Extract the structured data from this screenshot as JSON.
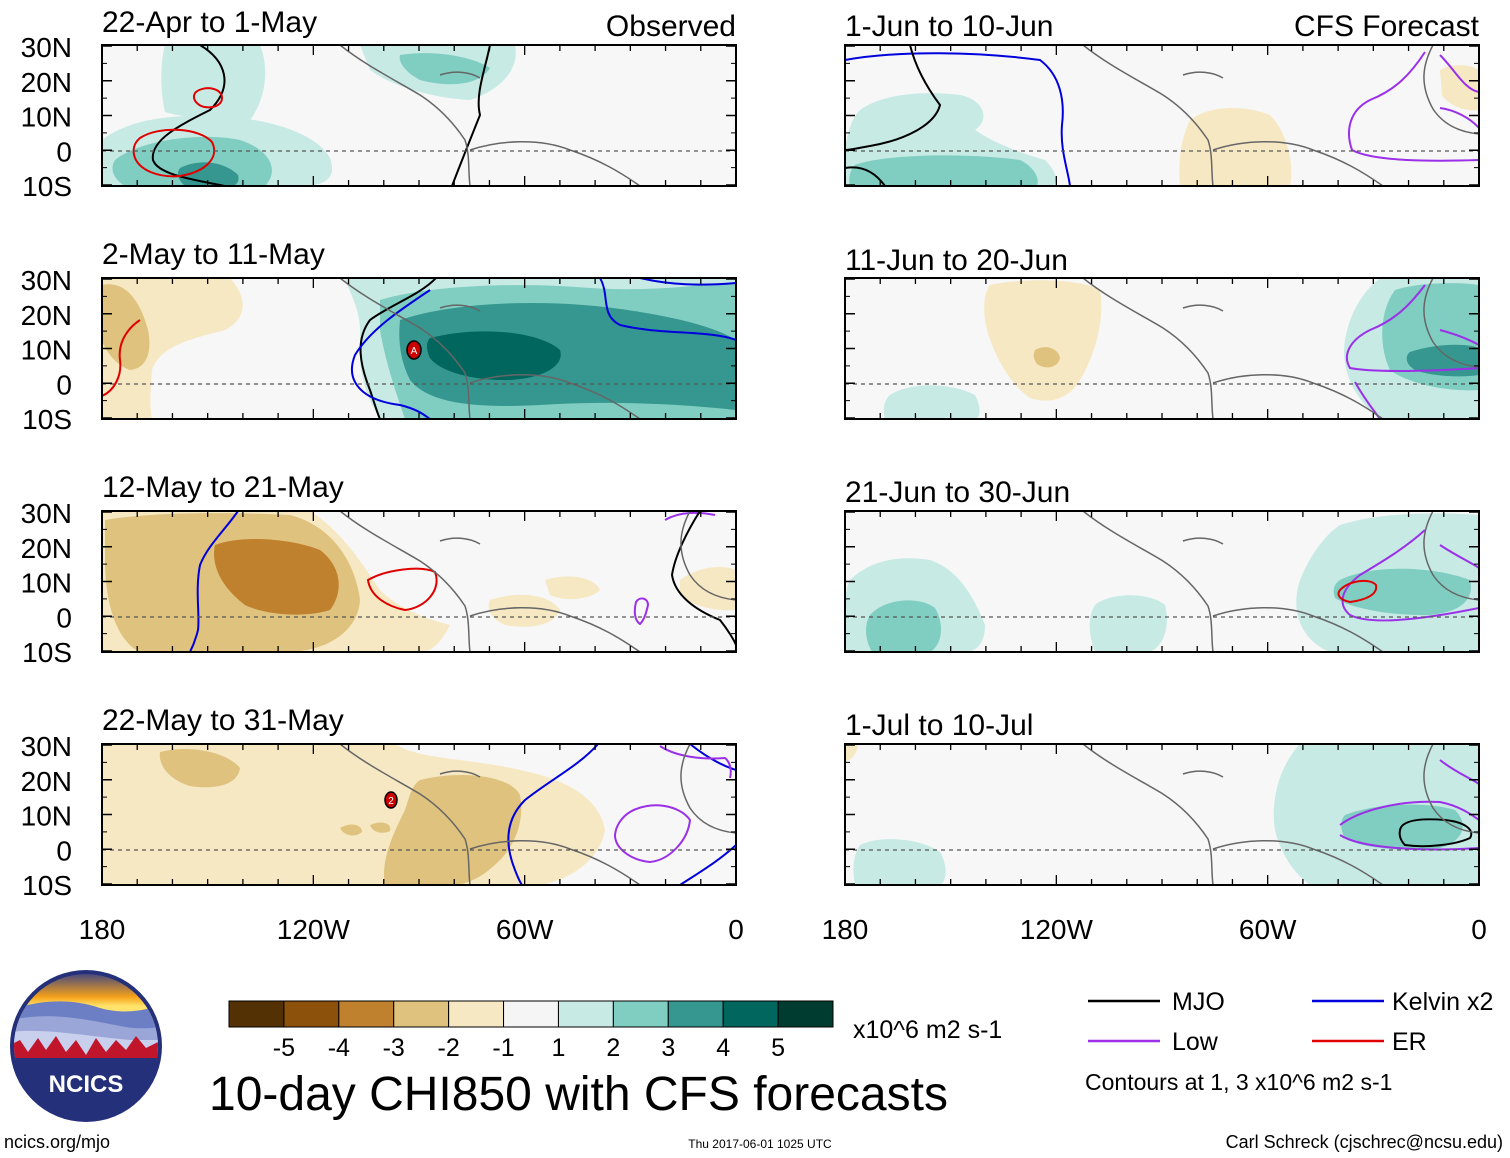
{
  "title": "10-day CHI850 with CFS forecasts",
  "columns": {
    "observed_label": "Observed",
    "forecast_label": "CFS Forecast"
  },
  "panels_left": [
    {
      "title": "22-Apr to 1-May"
    },
    {
      "title": "2-May to 11-May"
    },
    {
      "title": "12-May to 21-May"
    },
    {
      "title": "22-May to 31-May"
    }
  ],
  "panels_right": [
    {
      "title": "1-Jun to 10-Jun"
    },
    {
      "title": "11-Jun to 20-Jun"
    },
    {
      "title": "21-Jun to 30-Jun"
    },
    {
      "title": "1-Jul to 10-Jul"
    }
  ],
  "lat_ticks": [
    "30N",
    "20N",
    "10N",
    "0",
    "10S"
  ],
  "lon_ticks": [
    "180",
    "120W",
    "60W",
    "0"
  ],
  "colorbar": {
    "labels": [
      "-5",
      "-4",
      "-3",
      "-2",
      "-1",
      "1",
      "2",
      "3",
      "4",
      "5"
    ],
    "colors": [
      "#543005",
      "#8c510a",
      "#bf812d",
      "#dfc27d",
      "#f6e8c3",
      "#f5f5f5",
      "#c7eae5",
      "#80cdc1",
      "#35978f",
      "#01665e",
      "#003c30"
    ],
    "units": "x10^6 m2 s-1"
  },
  "legend": [
    {
      "label": "MJO",
      "color": "#000000"
    },
    {
      "label": "Kelvin x2",
      "color": "#0000dd"
    },
    {
      "label": "Low",
      "color": "#9b30e8"
    },
    {
      "label": "ER",
      "color": "#e00000"
    }
  ],
  "contour_note": "Contours at 1, 3 x10^6 m2 s-1",
  "logo_text": "NCICS",
  "site": "ncics.org/mjo",
  "timestamp": "Thu 2017-06-01 1025 UTC",
  "author": "Carl Schreck (cjschrec@ncsu.edu)",
  "symbols": {
    "storm_1": "A",
    "storm_2": "2"
  }
}
